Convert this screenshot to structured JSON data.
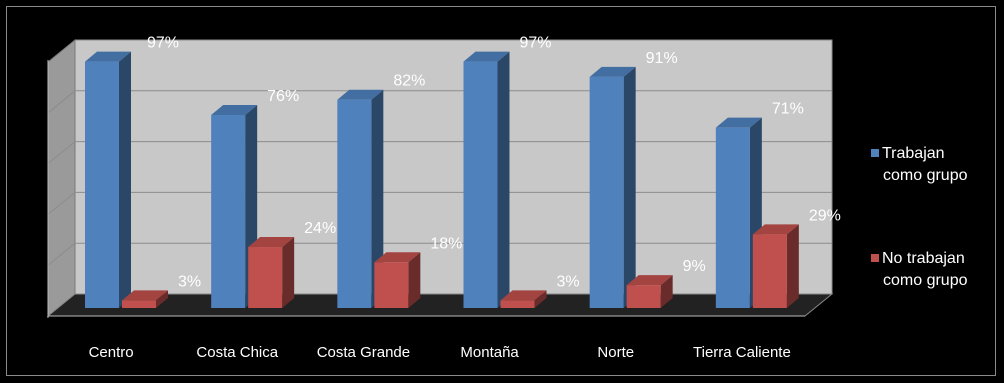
{
  "chart_data": {
    "type": "bar",
    "categories": [
      "Centro",
      "Costa Chica",
      "Costa Grande",
      "Montaña",
      "Norte",
      "Tierra Caliente"
    ],
    "series": [
      {
        "name": "Trabajan como grupo",
        "values": [
          97,
          76,
          82,
          97,
          91,
          71
        ],
        "labels": [
          "97%",
          "76%",
          "82%",
          "97%",
          "91%",
          "71%"
        ],
        "color": "#4F81BD"
      },
      {
        "name": "No trabajan como grupo",
        "values": [
          3,
          24,
          18,
          3,
          9,
          29
        ],
        "labels": [
          "3%",
          "24%",
          "18%",
          "3%",
          "9%",
          "29%"
        ],
        "color": "#C0504D"
      }
    ],
    "ylim": [
      0,
      100
    ],
    "grid": true,
    "three_d": true,
    "legend_position": "right",
    "legend_lines": [
      [
        "Trabajan",
        "como grupo"
      ],
      [
        "No trabajan",
        "como grupo"
      ]
    ]
  }
}
